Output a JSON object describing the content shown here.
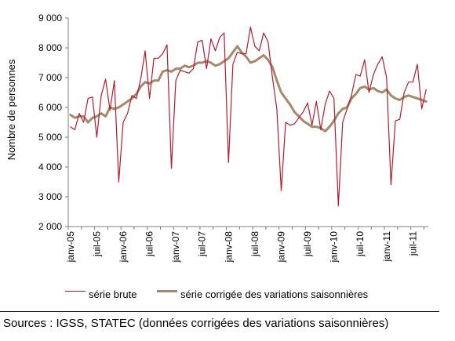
{
  "chart_data": {
    "type": "line",
    "ylabel": "Nombre de personnes",
    "ylim": [
      2000,
      9000
    ],
    "yticks": [
      2000,
      3000,
      4000,
      5000,
      6000,
      7000,
      8000,
      9000
    ],
    "ytick_labels": [
      "2 000",
      "3 000",
      "4 000",
      "5 000",
      "6 000",
      "7 000",
      "8 000",
      "9 000"
    ],
    "xtick_labels": [
      "janv-05",
      "juil-05",
      "janv-06",
      "juil-06",
      "janv-07",
      "juil-07",
      "janv-08",
      "juil-08",
      "janv-09",
      "juil-09",
      "janv-10",
      "juil-10",
      "janv-11",
      "juil-11"
    ],
    "x_start": "janv-05",
    "grid": false,
    "legend_position": "bottom",
    "series": [
      {
        "name": "série brute",
        "color": "#b71c2c",
        "values": [
          5350,
          5250,
          5800,
          5500,
          6300,
          6350,
          5000,
          6400,
          6950,
          5900,
          6900,
          3500,
          5500,
          5800,
          6400,
          6300,
          6950,
          7900,
          6300,
          7650,
          7650,
          7800,
          8100,
          3950,
          6900,
          7250,
          7200,
          7150,
          7300,
          8200,
          8250,
          7300,
          8300,
          7900,
          8350,
          8500,
          4150,
          7450,
          7850,
          7800,
          7800,
          8700,
          8050,
          7900,
          8500,
          8200,
          7000,
          5950,
          3200,
          5500,
          5400,
          5450,
          5650,
          5850,
          6150,
          5400,
          6200,
          5250,
          6100,
          6550,
          6300,
          2700,
          5500,
          5950,
          6400,
          7100,
          7050,
          7600,
          6500,
          7100,
          7450,
          7700,
          7000,
          3400,
          5550,
          5600,
          6500,
          6850,
          6850,
          7450,
          5950,
          6600
        ]
      },
      {
        "name": "série corrigée des variations saisonnières",
        "color": "#a48a6c",
        "values": [
          5750,
          5650,
          5700,
          5700,
          5500,
          5650,
          5700,
          5800,
          5700,
          6000,
          5950,
          6000,
          6100,
          6200,
          6300,
          6450,
          6700,
          6850,
          6800,
          6900,
          6900,
          7200,
          7250,
          7200,
          7300,
          7300,
          7400,
          7350,
          7400,
          7500,
          7500,
          7550,
          7500,
          7400,
          7450,
          7550,
          7650,
          7850,
          8050,
          7850,
          7700,
          7500,
          7550,
          7650,
          7750,
          7600,
          7350,
          6900,
          6500,
          6300,
          6100,
          5850,
          5700,
          5550,
          5450,
          5350,
          5350,
          5300,
          5200,
          5350,
          5550,
          5800,
          5950,
          6000,
          6300,
          6450,
          6650,
          6700,
          6600,
          6650,
          6550,
          6500,
          6600,
          6400,
          6300,
          6250,
          6350,
          6400,
          6350,
          6300,
          6250,
          6200
        ]
      }
    ]
  },
  "legend": {
    "raw_label": "série brute",
    "adjusted_label": "série corrigée des variations saisonnières"
  },
  "source_text": "Sources : IGSS, STATEC (données corrigées des variations saisonnières)"
}
